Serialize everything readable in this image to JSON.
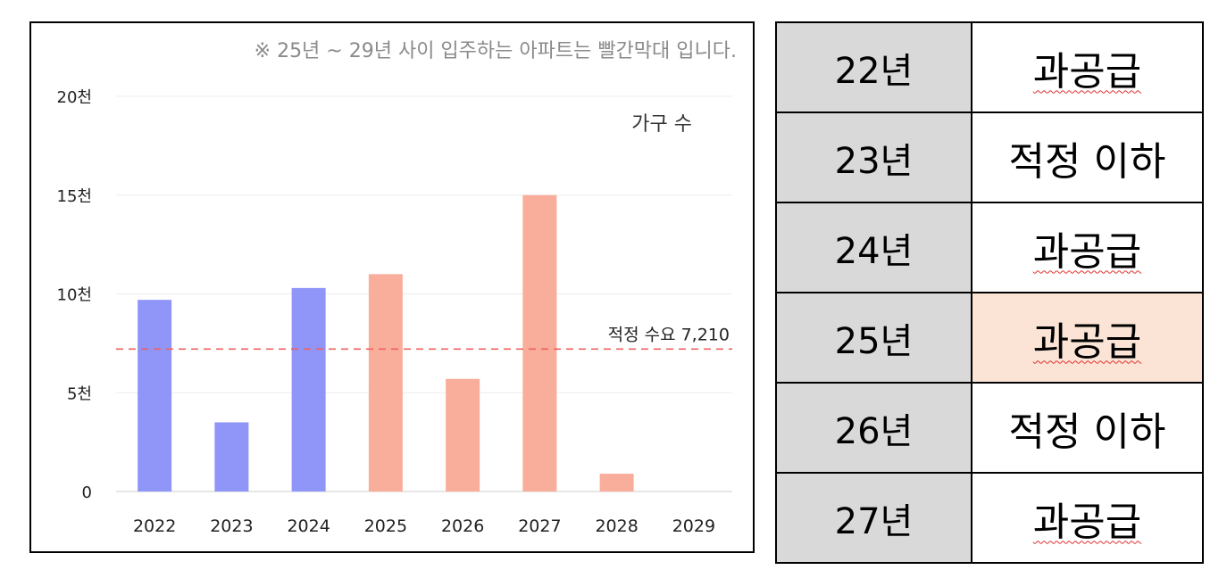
{
  "chart_data": {
    "type": "bar",
    "note": "※ 25년 ~ 29년 사이 입주하는 아파트는 빨간막대 입니다.",
    "legend_label": "가구 수",
    "categories": [
      "2022",
      "2023",
      "2024",
      "2025",
      "2026",
      "2027",
      "2028",
      "2029"
    ],
    "values": [
      9700,
      3500,
      10300,
      11000,
      5700,
      15000,
      900,
      0
    ],
    "bar_colors": [
      "#9095f8",
      "#9095f8",
      "#9095f8",
      "#f9ad9b",
      "#f9ad9b",
      "#f9ad9b",
      "#f9ad9b",
      "#f9ad9b"
    ],
    "ylim": [
      0,
      20000
    ],
    "yticks": [
      0,
      5000,
      10000,
      15000,
      20000
    ],
    "ytick_labels": [
      "0",
      "5천",
      "10천",
      "15천",
      "20천"
    ],
    "reference_line": {
      "value": 7210,
      "label": "적정 수요 7,210",
      "color": "#f06060"
    },
    "grid": true
  },
  "table": {
    "rows": [
      {
        "year": "22년",
        "status": "과공급",
        "highlight": false,
        "squiggle": true
      },
      {
        "year": "23년",
        "status": "적정 이하",
        "highlight": false,
        "squiggle": false
      },
      {
        "year": "24년",
        "status": "과공급",
        "highlight": false,
        "squiggle": true
      },
      {
        "year": "25년",
        "status": "과공급",
        "highlight": true,
        "squiggle": true
      },
      {
        "year": "26년",
        "status": "적정 이하",
        "highlight": false,
        "squiggle": false
      },
      {
        "year": "27년",
        "status": "과공급",
        "highlight": false,
        "squiggle": true
      }
    ]
  }
}
